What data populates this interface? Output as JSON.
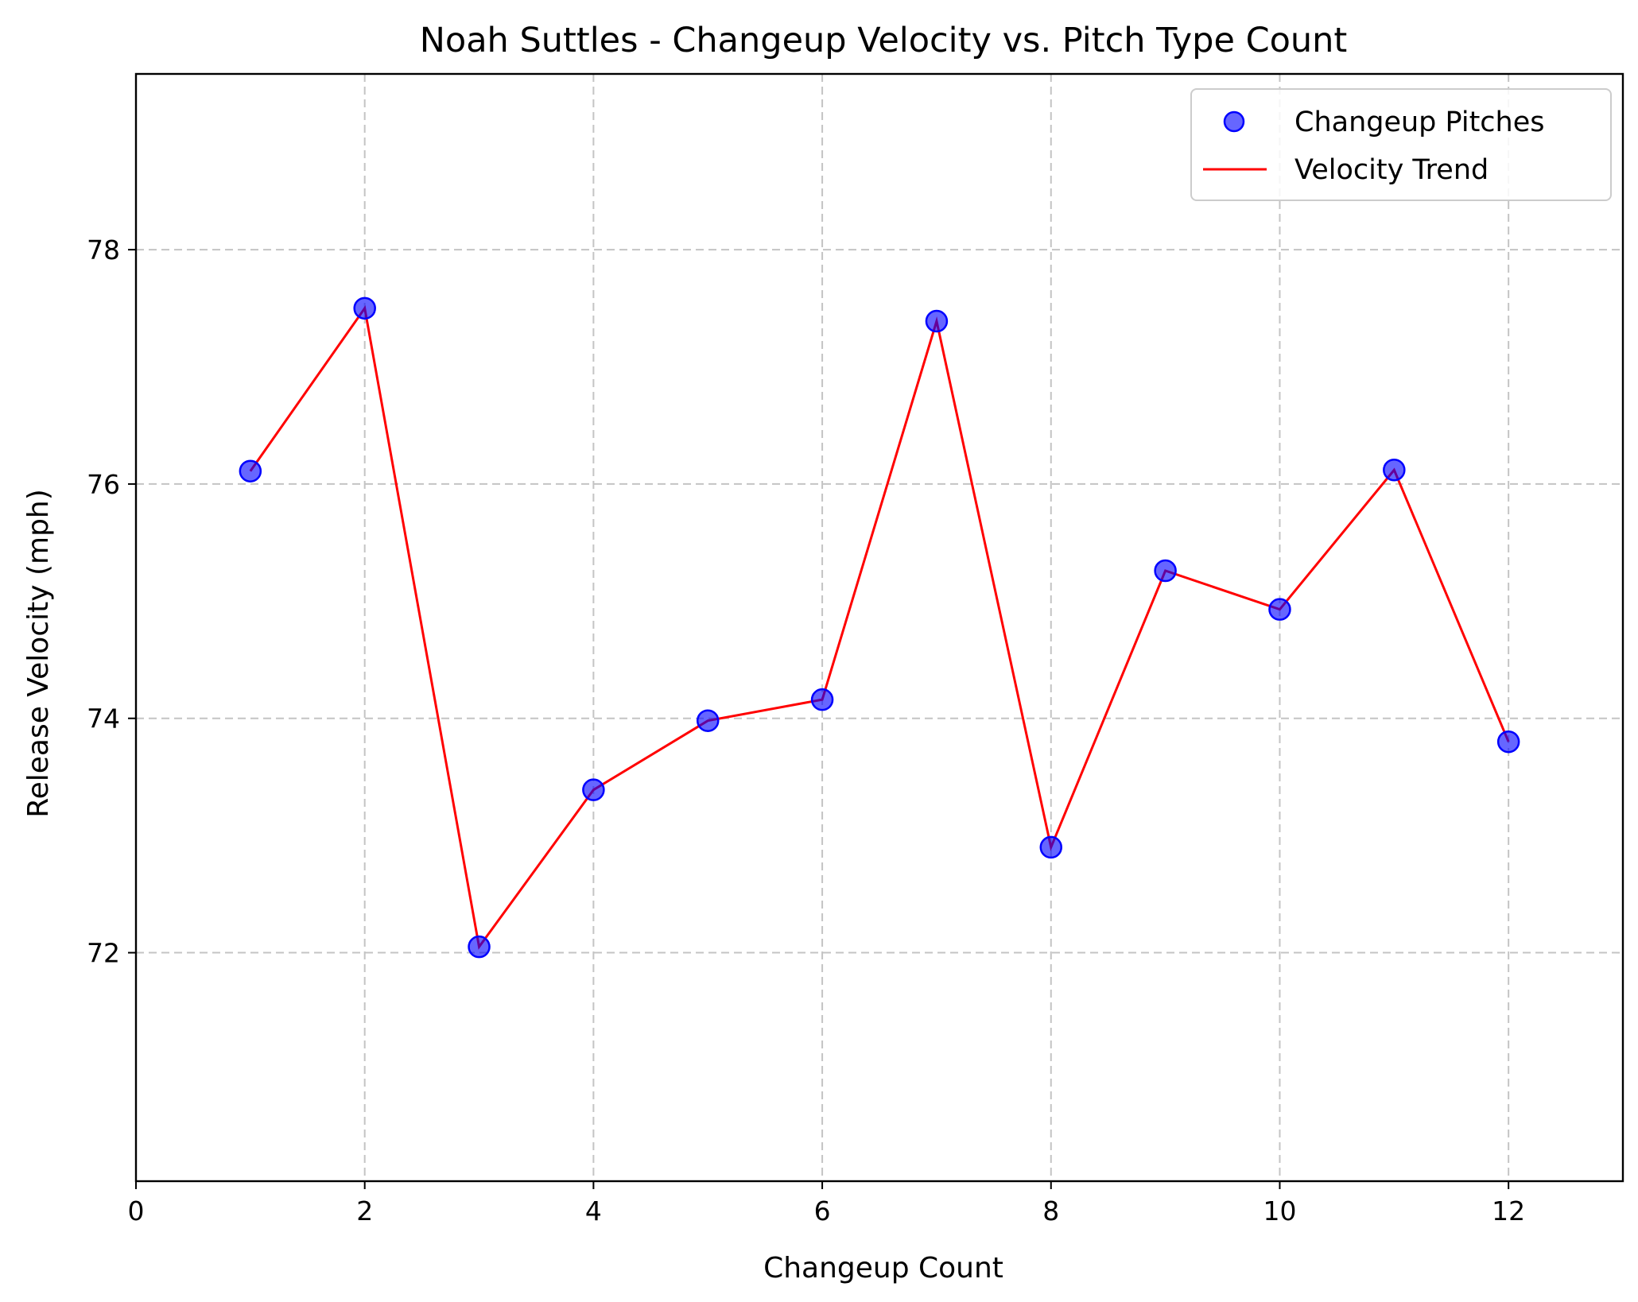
{
  "chart_data": {
    "type": "scatter",
    "title": "Noah Suttles - Changeup Velocity vs. Pitch Type Count",
    "xlabel": "Changeup Count",
    "ylabel": "Release Velocity (mph)",
    "xlim": [
      0,
      13
    ],
    "ylim": [
      70.05,
      79.5
    ],
    "xticks": [
      0,
      2,
      4,
      6,
      8,
      10,
      12
    ],
    "yticks": [
      72,
      74,
      76,
      78
    ],
    "grid": true,
    "legend_position": "top-right",
    "series": [
      {
        "name": "Changeup Pitches",
        "kind": "scatter",
        "color": "#0000ff",
        "x": [
          1,
          2,
          3,
          4,
          5,
          6,
          7,
          8,
          9,
          10,
          11,
          12
        ],
        "y": [
          76.11,
          77.5,
          72.05,
          73.39,
          73.98,
          74.16,
          77.39,
          72.9,
          75.26,
          74.93,
          76.12,
          73.8
        ]
      },
      {
        "name": "Velocity Trend",
        "kind": "line",
        "color": "#ff0000",
        "x": [
          1,
          2,
          3,
          4,
          5,
          6,
          7,
          8,
          9,
          10,
          11,
          12
        ],
        "y": [
          76.11,
          77.5,
          72.05,
          73.39,
          73.98,
          74.16,
          77.39,
          72.9,
          75.26,
          74.93,
          76.12,
          73.8
        ]
      }
    ]
  }
}
